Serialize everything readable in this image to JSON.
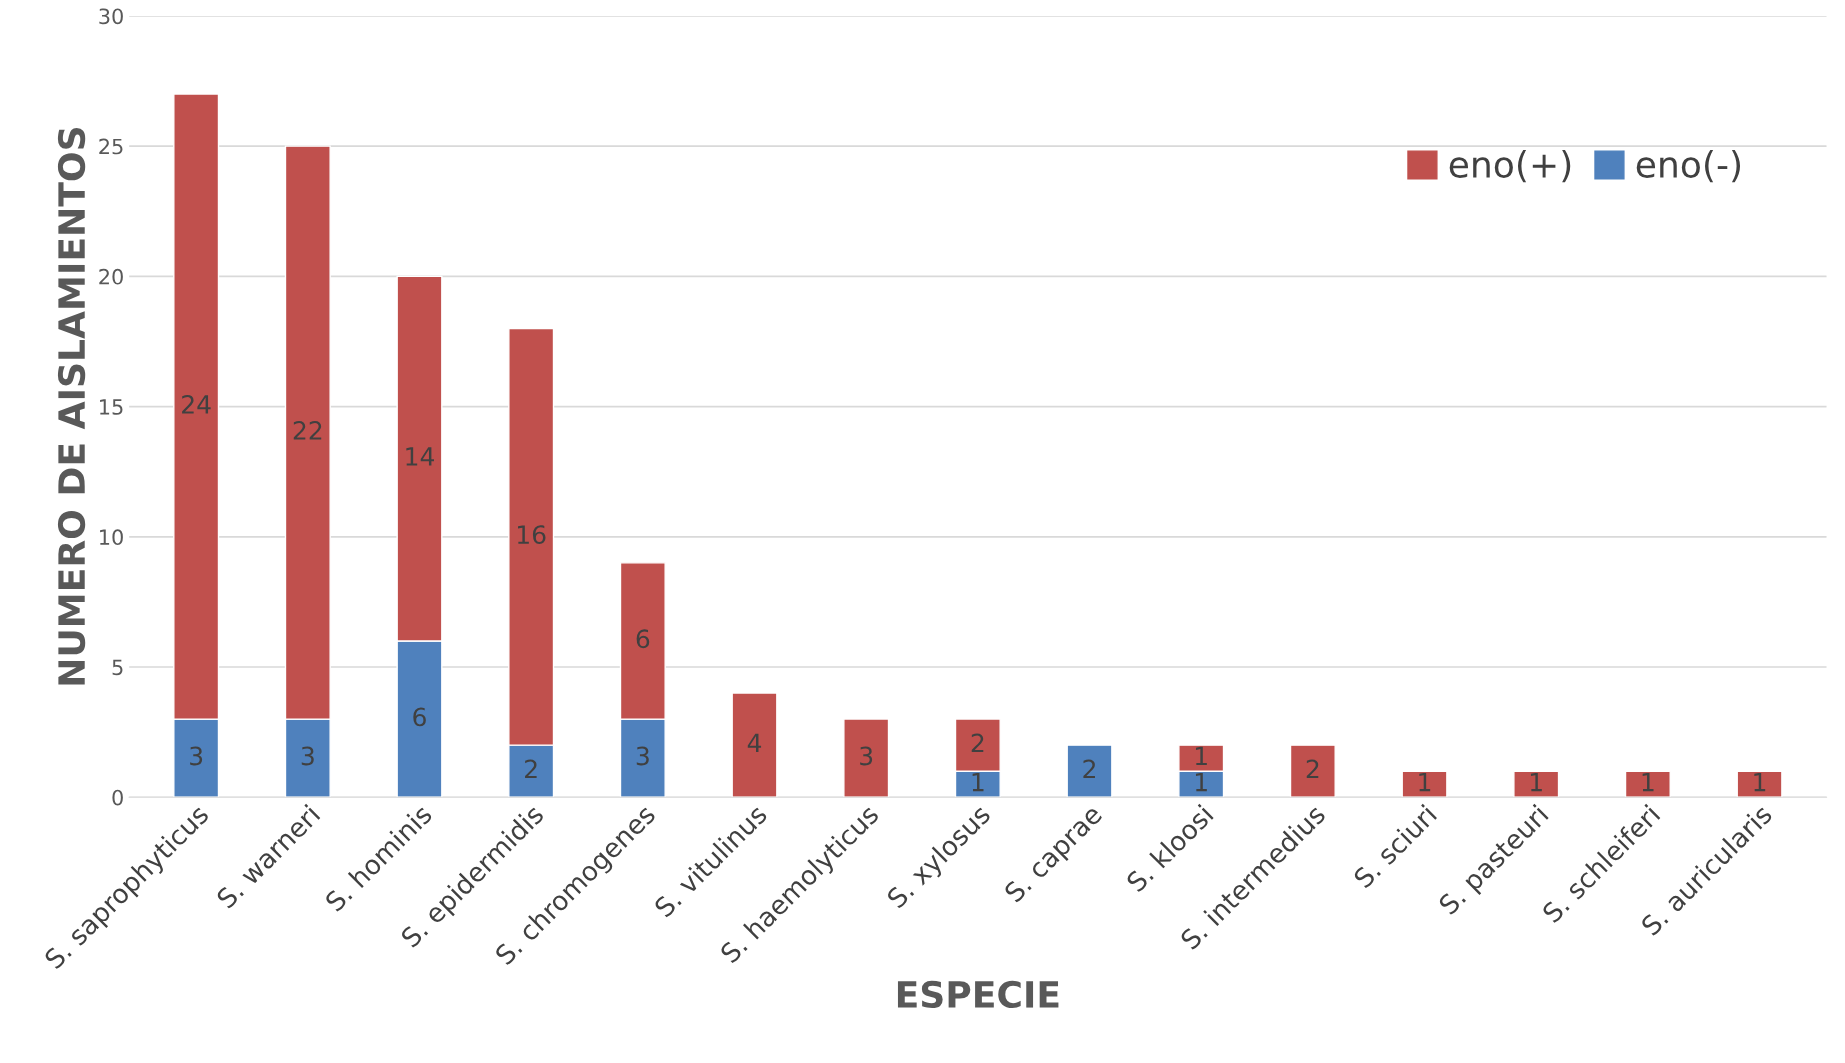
{
  "chart_data": {
    "type": "bar",
    "stacked": true,
    "xlabel": "ESPECIE",
    "ylabel": "NUMERO DE AISLAMIENTOS",
    "categories": [
      "S. saprophyticus",
      "S. warneri",
      "S. hominis",
      "S. epidermidis",
      "S. chromogenes",
      "S. vitulinus",
      "S. haemolyticus",
      "S. xylosus",
      "S. caprae",
      "S. kloosi",
      "S. intermedius",
      "S. sciuri",
      "S. pasteuri",
      "S. schleiferi",
      "S. auricularis"
    ],
    "series": [
      {
        "name": "eno(-)",
        "color": "#4f81bd",
        "values": [
          3,
          3,
          6,
          2,
          3,
          null,
          null,
          1,
          2,
          1,
          null,
          null,
          null,
          null,
          null
        ]
      },
      {
        "name": "eno(+)",
        "color": "#c0504d",
        "values": [
          24,
          22,
          14,
          16,
          6,
          4,
          3,
          2,
          null,
          1,
          2,
          1,
          1,
          1,
          1
        ]
      }
    ],
    "ylim": [
      0,
      30
    ],
    "yticks": [
      0,
      5,
      10,
      15,
      20,
      25,
      30
    ],
    "grid": "y",
    "legend": "top right",
    "data_labels": true
  }
}
